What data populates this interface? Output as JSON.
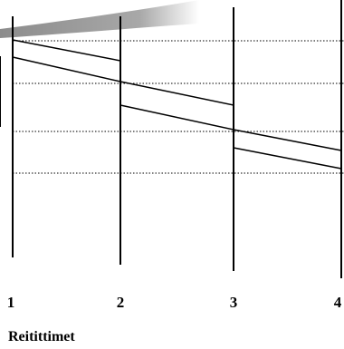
{
  "diagram": {
    "caption": "Reitittimet",
    "routers": [
      "1",
      "2",
      "3",
      "4"
    ],
    "colors": {
      "ink": "#000000",
      "banner_gray": "#8c8c8c"
    }
  }
}
